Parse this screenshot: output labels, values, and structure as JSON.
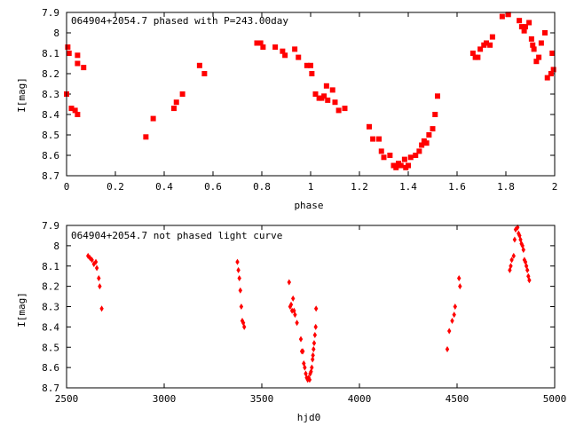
{
  "chart_data": [
    {
      "type": "scatter",
      "title": "064904+2054.7 phased with P=243.00day",
      "xlabel": "phase",
      "ylabel": "I[mag]",
      "xlim": [
        0,
        2
      ],
      "ylim": [
        7.9,
        8.7
      ],
      "y_inverted": true,
      "xticks": [
        "0",
        "0.2",
        "0.4",
        "0.6",
        "0.8",
        "1",
        "1.2",
        "1.4",
        "1.6",
        "1.8",
        "2"
      ],
      "xtick_values": [
        0,
        0.2,
        0.4,
        0.6,
        0.8,
        1.0,
        1.2,
        1.4,
        1.6,
        1.8,
        2.0
      ],
      "yticks": [
        "7.9",
        "8",
        "8.1",
        "8.2",
        "8.3",
        "8.4",
        "8.5",
        "8.6",
        "8.7"
      ],
      "ytick_values": [
        7.9,
        8.0,
        8.1,
        8.2,
        8.3,
        8.4,
        8.5,
        8.6,
        8.7
      ],
      "marker_color": "#ff0000",
      "points": [
        [
          0.0,
          8.3
        ],
        [
          0.005,
          8.07
        ],
        [
          0.01,
          8.1
        ],
        [
          0.02,
          8.37
        ],
        [
          0.035,
          8.38
        ],
        [
          0.045,
          8.4
        ],
        [
          0.045,
          8.11
        ],
        [
          0.045,
          8.15
        ],
        [
          0.07,
          8.17
        ],
        [
          0.325,
          8.51
        ],
        [
          0.355,
          8.42
        ],
        [
          0.44,
          8.37
        ],
        [
          0.45,
          8.34
        ],
        [
          0.475,
          8.3
        ],
        [
          0.545,
          8.16
        ],
        [
          0.565,
          8.2
        ],
        [
          0.78,
          8.05
        ],
        [
          0.795,
          8.05
        ],
        [
          0.805,
          8.07
        ],
        [
          0.855,
          8.07
        ],
        [
          0.885,
          8.09
        ],
        [
          0.895,
          8.11
        ],
        [
          0.935,
          8.08
        ],
        [
          0.95,
          8.12
        ],
        [
          0.985,
          8.16
        ],
        [
          1.0,
          8.16
        ],
        [
          1.005,
          8.2
        ],
        [
          1.02,
          8.3
        ],
        [
          1.035,
          8.32
        ],
        [
          1.045,
          8.32
        ],
        [
          1.055,
          8.31
        ],
        [
          1.065,
          8.26
        ],
        [
          1.07,
          8.33
        ],
        [
          1.09,
          8.28
        ],
        [
          1.1,
          8.34
        ],
        [
          1.115,
          8.38
        ],
        [
          1.14,
          8.37
        ],
        [
          1.24,
          8.46
        ],
        [
          1.255,
          8.52
        ],
        [
          1.28,
          8.52
        ],
        [
          1.29,
          8.58
        ],
        [
          1.3,
          8.61
        ],
        [
          1.325,
          8.6
        ],
        [
          1.34,
          8.65
        ],
        [
          1.35,
          8.66
        ],
        [
          1.36,
          8.64
        ],
        [
          1.37,
          8.65
        ],
        [
          1.385,
          8.62
        ],
        [
          1.39,
          8.66
        ],
        [
          1.4,
          8.65
        ],
        [
          1.41,
          8.61
        ],
        [
          1.43,
          8.6
        ],
        [
          1.445,
          8.58
        ],
        [
          1.455,
          8.55
        ],
        [
          1.465,
          8.53
        ],
        [
          1.475,
          8.54
        ],
        [
          1.485,
          8.5
        ],
        [
          1.5,
          8.47
        ],
        [
          1.51,
          8.4
        ],
        [
          1.52,
          8.31
        ],
        [
          1.665,
          8.1
        ],
        [
          1.675,
          8.12
        ],
        [
          1.685,
          8.12
        ],
        [
          1.695,
          8.08
        ],
        [
          1.71,
          8.06
        ],
        [
          1.72,
          8.05
        ],
        [
          1.735,
          8.06
        ],
        [
          1.745,
          8.02
        ],
        [
          1.785,
          7.92
        ],
        [
          1.81,
          7.91
        ],
        [
          1.855,
          7.94
        ],
        [
          1.865,
          7.97
        ],
        [
          1.875,
          7.99
        ],
        [
          1.88,
          7.97
        ],
        [
          1.895,
          7.95
        ],
        [
          1.905,
          8.03
        ],
        [
          1.91,
          8.06
        ],
        [
          1.915,
          8.08
        ],
        [
          1.925,
          8.14
        ],
        [
          1.935,
          8.12
        ],
        [
          1.945,
          8.05
        ],
        [
          1.96,
          8.0
        ],
        [
          1.97,
          8.22
        ],
        [
          1.985,
          8.2
        ],
        [
          1.99,
          8.1
        ],
        [
          1.995,
          8.18
        ]
      ]
    },
    {
      "type": "scatter",
      "title": "064904+2054.7 not phased light curve",
      "xlabel": "hjd0",
      "ylabel": "I[mag]",
      "xlim": [
        2500,
        5000
      ],
      "ylim": [
        7.9,
        8.7
      ],
      "y_inverted": true,
      "xticks": [
        "2500",
        "3000",
        "3500",
        "4000",
        "4500",
        "5000"
      ],
      "xtick_values": [
        2500,
        3000,
        3500,
        4000,
        4500,
        5000
      ],
      "yticks": [
        "7.9",
        "8",
        "8.1",
        "8.2",
        "8.3",
        "8.4",
        "8.5",
        "8.6",
        "8.7"
      ],
      "ytick_values": [
        7.9,
        8.0,
        8.1,
        8.2,
        8.3,
        8.4,
        8.5,
        8.6,
        8.7
      ],
      "marker_color": "#ff0000",
      "points": [
        [
          2610,
          8.05
        ],
        [
          2620,
          8.06
        ],
        [
          2630,
          8.07
        ],
        [
          2640,
          8.09
        ],
        [
          2650,
          8.08
        ],
        [
          2655,
          8.11
        ],
        [
          2665,
          8.16
        ],
        [
          2670,
          8.2
        ],
        [
          2680,
          8.31
        ],
        [
          3375,
          8.08
        ],
        [
          3380,
          8.12
        ],
        [
          3385,
          8.16
        ],
        [
          3390,
          8.22
        ],
        [
          3395,
          8.3
        ],
        [
          3400,
          8.37
        ],
        [
          3405,
          8.38
        ],
        [
          3410,
          8.4
        ],
        [
          3640,
          8.18
        ],
        [
          3645,
          8.3
        ],
        [
          3650,
          8.29
        ],
        [
          3655,
          8.32
        ],
        [
          3660,
          8.26
        ],
        [
          3665,
          8.32
        ],
        [
          3670,
          8.34
        ],
        [
          3680,
          8.38
        ],
        [
          3700,
          8.46
        ],
        [
          3705,
          8.52
        ],
        [
          3710,
          8.52
        ],
        [
          3715,
          8.58
        ],
        [
          3720,
          8.6
        ],
        [
          3725,
          8.63
        ],
        [
          3730,
          8.65
        ],
        [
          3735,
          8.66
        ],
        [
          3740,
          8.65
        ],
        [
          3745,
          8.66
        ],
        [
          3748,
          8.63
        ],
        [
          3752,
          8.62
        ],
        [
          3756,
          8.6
        ],
        [
          3760,
          8.56
        ],
        [
          3762,
          8.54
        ],
        [
          3765,
          8.51
        ],
        [
          3768,
          8.48
        ],
        [
          3772,
          8.44
        ],
        [
          3776,
          8.4
        ],
        [
          3778,
          8.31
        ],
        [
          4450,
          8.51
        ],
        [
          4460,
          8.42
        ],
        [
          4475,
          8.37
        ],
        [
          4485,
          8.34
        ],
        [
          4490,
          8.3
        ],
        [
          4510,
          8.16
        ],
        [
          4515,
          8.2
        ],
        [
          4770,
          8.12
        ],
        [
          4775,
          8.1
        ],
        [
          4780,
          8.07
        ],
        [
          4790,
          8.05
        ],
        [
          4795,
          7.97
        ],
        [
          4800,
          7.92
        ],
        [
          4810,
          7.91
        ],
        [
          4815,
          7.94
        ],
        [
          4820,
          7.95
        ],
        [
          4825,
          7.97
        ],
        [
          4830,
          7.99
        ],
        [
          4835,
          8.0
        ],
        [
          4840,
          8.02
        ],
        [
          4845,
          8.07
        ],
        [
          4850,
          8.08
        ],
        [
          4855,
          8.1
        ],
        [
          4860,
          8.12
        ],
        [
          4865,
          8.15
        ],
        [
          4870,
          8.17
        ]
      ]
    }
  ]
}
